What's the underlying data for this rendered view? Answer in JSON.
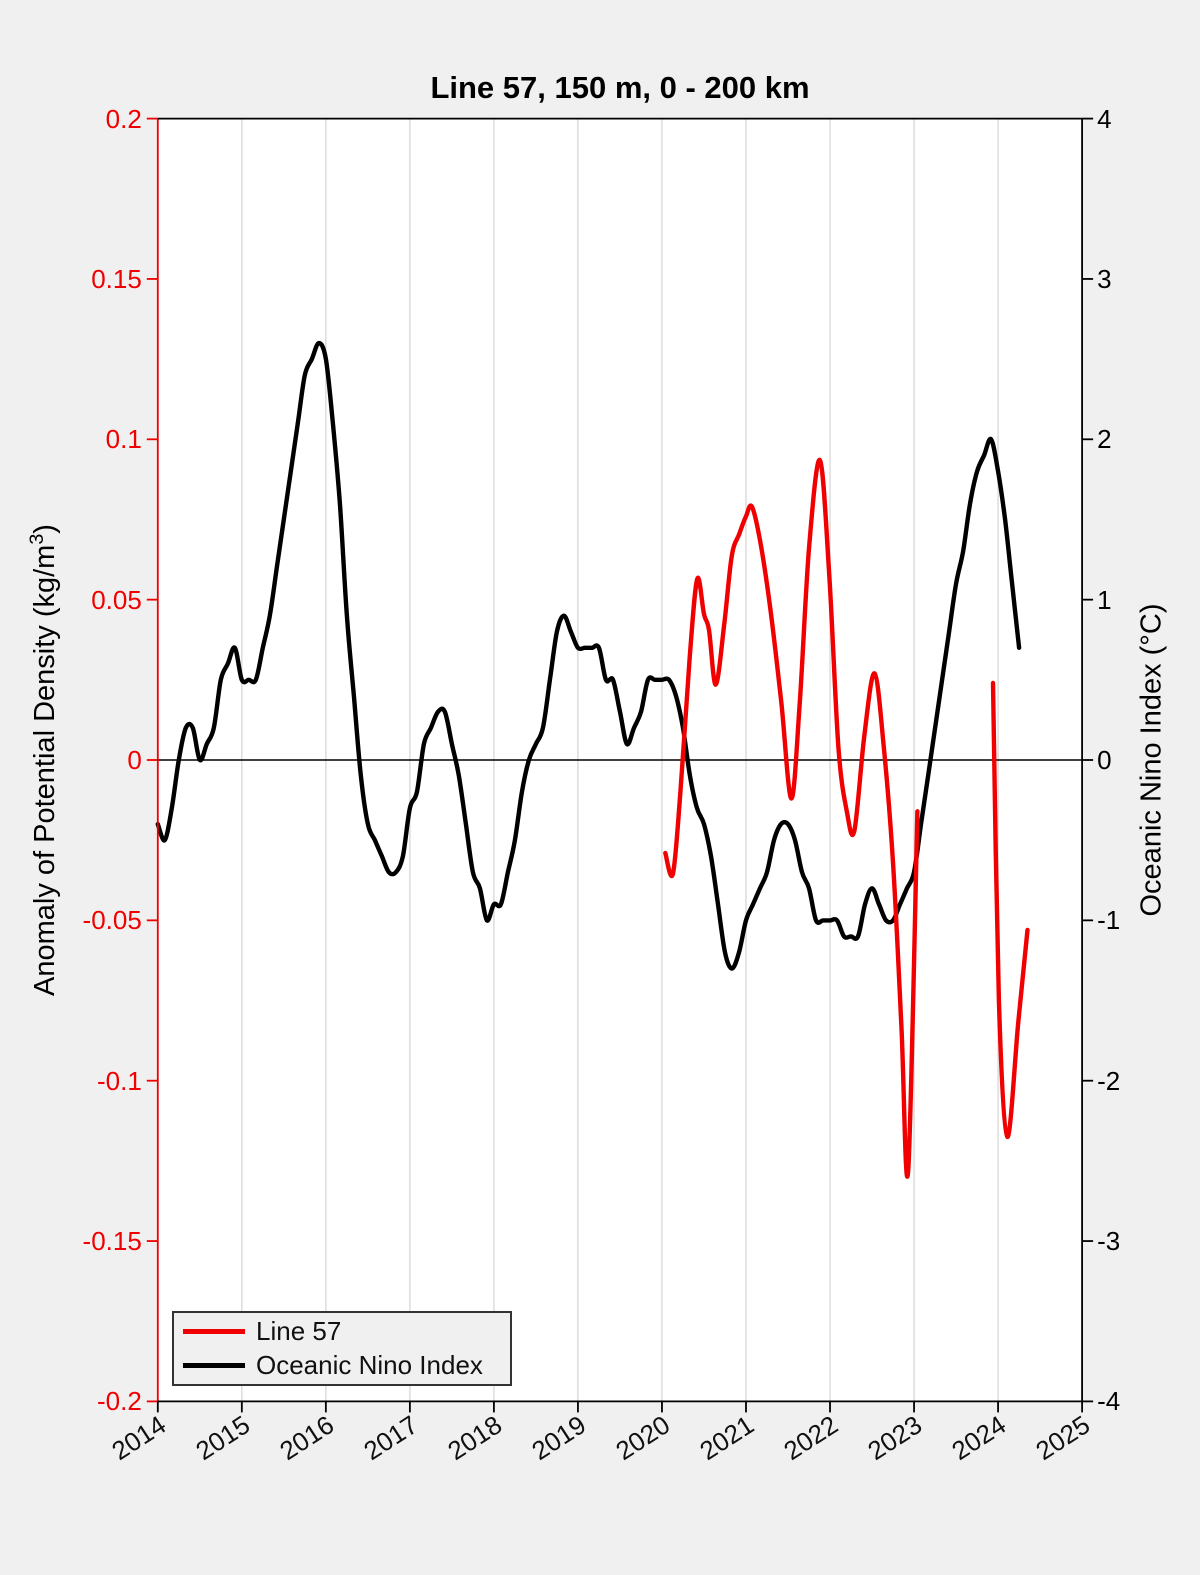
{
  "title": "Line 57, 150 m, 0 - 200 km",
  "left_axis_label": {
    "text": "Anomaly of Potential Density (kg/m",
    "sup": "3",
    "suffix": ")"
  },
  "right_axis_label": "Oceanic Nino Index (°C)",
  "legend": {
    "items": [
      {
        "label": "Line 57",
        "color": "#f00000"
      },
      {
        "label": "Oceanic Nino Index",
        "color": "#000000"
      }
    ]
  },
  "chart_data": {
    "type": "line",
    "title": "Line 57, 150 m, 0 - 200 km",
    "background": "#f0f0f0",
    "plot_background": "#ffffff",
    "grid_color": "#dcdcdc",
    "zero_line": true,
    "legend_position": "bottom-left",
    "x_axis": {
      "range": [
        2014,
        2025
      ],
      "ticks": [
        2014,
        2015,
        2016,
        2017,
        2018,
        2019,
        2020,
        2021,
        2022,
        2023,
        2024,
        2025
      ],
      "tick_labels": [
        "2014",
        "2015",
        "2016",
        "2017",
        "2018",
        "2019",
        "2020",
        "2021",
        "2022",
        "2023",
        "2024",
        "2025"
      ],
      "grid": "vertical-only"
    },
    "left_y_axis": {
      "label": "Anomaly of Potential Density (kg/m³)",
      "color": "#f00000",
      "range": [
        -0.2,
        0.2
      ],
      "ticks": [
        0.2,
        0.15,
        0.1,
        0.05,
        0,
        -0.05,
        -0.1,
        -0.15,
        -0.2
      ],
      "tick_labels": [
        "0.2",
        "0.15",
        "0.1",
        "0.05",
        "0",
        "-0.05",
        "-0.1",
        "-0.15",
        "-0.2"
      ]
    },
    "right_y_axis": {
      "label": "Oceanic Nino Index (°C)",
      "color": "#000000",
      "range": [
        -4,
        4
      ],
      "ticks": [
        4,
        3,
        2,
        1,
        0,
        -1,
        -2,
        -3,
        -4
      ],
      "tick_labels": [
        "4",
        "3",
        "2",
        "1",
        "0",
        "-1",
        "-2",
        "-3",
        "-4"
      ]
    },
    "series": [
      {
        "name": "Line 57",
        "axis": "left",
        "color": "#f00000",
        "line_width": 4.4,
        "segments": [
          [
            [
              2020.04,
              -0.029
            ],
            [
              2020.13,
              -0.0355
            ],
            [
              2020.22,
              -0.01
            ],
            [
              2020.33,
              0.032
            ],
            [
              2020.42,
              0.0565
            ],
            [
              2020.5,
              0.0455
            ],
            [
              2020.56,
              0.0405
            ],
            [
              2020.64,
              0.0235
            ],
            [
              2020.74,
              0.042
            ],
            [
              2020.83,
              0.0635
            ],
            [
              2020.92,
              0.0705
            ],
            [
              2021.0,
              0.076
            ],
            [
              2021.07,
              0.079
            ],
            [
              2021.17,
              0.068
            ],
            [
              2021.29,
              0.047
            ],
            [
              2021.42,
              0.018
            ],
            [
              2021.54,
              -0.012
            ],
            [
              2021.64,
              0.018
            ],
            [
              2021.75,
              0.066
            ],
            [
              2021.88,
              0.0935
            ],
            [
              2021.99,
              0.058
            ],
            [
              2022.1,
              0.004
            ],
            [
              2022.2,
              -0.016
            ],
            [
              2022.29,
              -0.022
            ],
            [
              2022.41,
              0.008
            ],
            [
              2022.53,
              0.027
            ],
            [
              2022.64,
              0.004
            ],
            [
              2022.75,
              -0.032
            ],
            [
              2022.85,
              -0.083
            ],
            [
              2022.93,
              -0.128
            ],
            [
              2023.04,
              -0.016
            ]
          ],
          [
            [
              2023.94,
              0.024
            ],
            [
              2024.01,
              -0.075
            ],
            [
              2024.11,
              -0.1175
            ],
            [
              2024.24,
              -0.082
            ],
            [
              2024.35,
              -0.053
            ]
          ]
        ]
      },
      {
        "name": "Oceanic Nino Index",
        "axis": "right",
        "color": "#000000",
        "line_width": 4.4,
        "segments": [
          [
            [
              2014.0,
              -0.4
            ],
            [
              2014.0833,
              -0.5
            ],
            [
              2014.1667,
              -0.3
            ],
            [
              2014.25,
              0
            ],
            [
              2014.3333,
              0.2
            ],
            [
              2014.4167,
              0.2
            ],
            [
              2014.5,
              0
            ],
            [
              2014.5833,
              0.1
            ],
            [
              2014.6667,
              0.2
            ],
            [
              2014.75,
              0.5
            ],
            [
              2014.8333,
              0.6
            ],
            [
              2014.9167,
              0.7
            ],
            [
              2015.0,
              0.5
            ],
            [
              2015.0833,
              0.5
            ],
            [
              2015.1667,
              0.5
            ],
            [
              2015.25,
              0.7
            ],
            [
              2015.3333,
              0.9
            ],
            [
              2015.4167,
              1.2
            ],
            [
              2015.5,
              1.5
            ],
            [
              2015.5833,
              1.8
            ],
            [
              2015.6667,
              2.1
            ],
            [
              2015.75,
              2.4
            ],
            [
              2015.8333,
              2.5
            ],
            [
              2015.9167,
              2.6
            ],
            [
              2016.0,
              2.5
            ],
            [
              2016.0833,
              2.1
            ],
            [
              2016.1667,
              1.6
            ],
            [
              2016.25,
              0.9
            ],
            [
              2016.3333,
              0.4
            ],
            [
              2016.4167,
              -0.1
            ],
            [
              2016.5,
              -0.4
            ],
            [
              2016.5833,
              -0.5
            ],
            [
              2016.6667,
              -0.6
            ],
            [
              2016.75,
              -0.7
            ],
            [
              2016.8333,
              -0.7
            ],
            [
              2016.9167,
              -0.6
            ],
            [
              2017.0,
              -0.3
            ],
            [
              2017.0833,
              -0.2
            ],
            [
              2017.1667,
              0.1
            ],
            [
              2017.25,
              0.2
            ],
            [
              2017.3333,
              0.3
            ],
            [
              2017.4167,
              0.3
            ],
            [
              2017.5,
              0.1
            ],
            [
              2017.5833,
              -0.1
            ],
            [
              2017.6667,
              -0.4
            ],
            [
              2017.75,
              -0.7
            ],
            [
              2017.8333,
              -0.8
            ],
            [
              2017.9167,
              -1.0
            ],
            [
              2018.0,
              -0.9
            ],
            [
              2018.0833,
              -0.9
            ],
            [
              2018.1667,
              -0.7
            ],
            [
              2018.25,
              -0.5
            ],
            [
              2018.3333,
              -0.2
            ],
            [
              2018.4167,
              0
            ],
            [
              2018.5,
              0.1
            ],
            [
              2018.5833,
              0.2
            ],
            [
              2018.6667,
              0.5
            ],
            [
              2018.75,
              0.8
            ],
            [
              2018.8333,
              0.9
            ],
            [
              2018.9167,
              0.8
            ],
            [
              2019.0,
              0.7
            ],
            [
              2019.0833,
              0.7
            ],
            [
              2019.1667,
              0.7
            ],
            [
              2019.25,
              0.7
            ],
            [
              2019.3333,
              0.5
            ],
            [
              2019.4167,
              0.5
            ],
            [
              2019.5,
              0.3
            ],
            [
              2019.5833,
              0.1
            ],
            [
              2019.6667,
              0.2
            ],
            [
              2019.75,
              0.3
            ],
            [
              2019.8333,
              0.5
            ],
            [
              2019.9167,
              0.5
            ],
            [
              2020.0,
              0.5
            ],
            [
              2020.0833,
              0.5
            ],
            [
              2020.1667,
              0.4
            ],
            [
              2020.25,
              0.2
            ],
            [
              2020.3333,
              -0.1
            ],
            [
              2020.4167,
              -0.3
            ],
            [
              2020.5,
              -0.4
            ],
            [
              2020.5833,
              -0.6
            ],
            [
              2020.6667,
              -0.9
            ],
            [
              2020.75,
              -1.2
            ],
            [
              2020.8333,
              -1.3
            ],
            [
              2020.9167,
              -1.2
            ],
            [
              2021.0,
              -1.0
            ],
            [
              2021.0833,
              -0.9
            ],
            [
              2021.1667,
              -0.8
            ],
            [
              2021.25,
              -0.7
            ],
            [
              2021.3333,
              -0.5
            ],
            [
              2021.4167,
              -0.4
            ],
            [
              2021.5,
              -0.4
            ],
            [
              2021.5833,
              -0.5
            ],
            [
              2021.6667,
              -0.7
            ],
            [
              2021.75,
              -0.8
            ],
            [
              2021.8333,
              -1.0
            ],
            [
              2021.9167,
              -1.0
            ],
            [
              2022.0,
              -1.0
            ],
            [
              2022.0833,
              -1.0
            ],
            [
              2022.1667,
              -1.1
            ],
            [
              2022.25,
              -1.1
            ],
            [
              2022.3333,
              -1.1
            ],
            [
              2022.4167,
              -0.9
            ],
            [
              2022.5,
              -0.8
            ],
            [
              2022.5833,
              -0.9
            ],
            [
              2022.6667,
              -1.0
            ],
            [
              2022.75,
              -1.0
            ],
            [
              2022.8333,
              -0.9
            ],
            [
              2022.9167,
              -0.8
            ],
            [
              2023.0,
              -0.7
            ],
            [
              2023.0833,
              -0.4
            ],
            [
              2023.1667,
              -0.1
            ],
            [
              2023.25,
              0.2
            ],
            [
              2023.3333,
              0.5
            ],
            [
              2023.4167,
              0.8
            ],
            [
              2023.5,
              1.1
            ],
            [
              2023.5833,
              1.3
            ],
            [
              2023.6667,
              1.6
            ],
            [
              2023.75,
              1.8
            ],
            [
              2023.8333,
              1.9
            ],
            [
              2023.9167,
              2.0
            ],
            [
              2024.0,
              1.8
            ],
            [
              2024.0833,
              1.5
            ],
            [
              2024.1667,
              1.1
            ],
            [
              2024.25,
              0.7
            ]
          ]
        ]
      }
    ]
  }
}
